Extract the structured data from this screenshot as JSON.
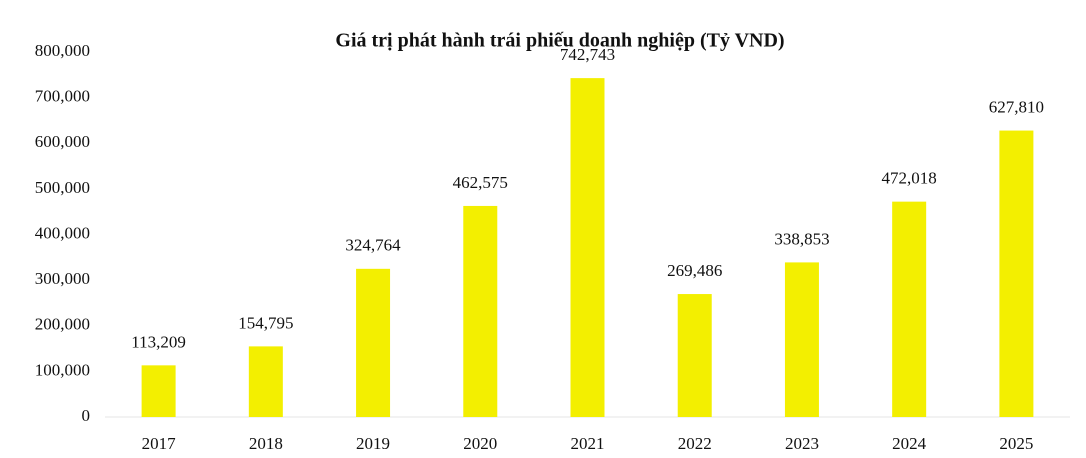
{
  "chart_data": {
    "type": "bar",
    "title": "Giá trị phát hành trái phiếu doanh nghiệp (Tỷ VND)",
    "categories": [
      "2017",
      "2018",
      "2019",
      "2020",
      "2021",
      "2022",
      "2023",
      "2024",
      "2025"
    ],
    "values": [
      113209,
      154795,
      324764,
      462575,
      742743,
      269486,
      338853,
      472018,
      627810
    ],
    "value_labels": [
      "113,209",
      "154,795",
      "324,764",
      "462,575",
      "742,743",
      "269,486",
      "338,853",
      "472,018",
      "627,810"
    ],
    "color": "#f3ef00",
    "ylim": [
      0,
      800000
    ],
    "yticks": [
      0,
      {
        "value": 100000,
        "label": "100,000"
      },
      {
        "value": 200000,
        "label": "200,000"
      },
      {
        "value": 300000,
        "label": "300,000"
      },
      {
        "value": 400000,
        "label": "400,000"
      },
      {
        "value": 500000,
        "label": "500,000"
      },
      {
        "value": 600000,
        "label": "600,000"
      },
      {
        "value": 700000,
        "label": "700,000"
      },
      {
        "value": 800000,
        "label": "800,000"
      }
    ],
    "grid": false
  }
}
